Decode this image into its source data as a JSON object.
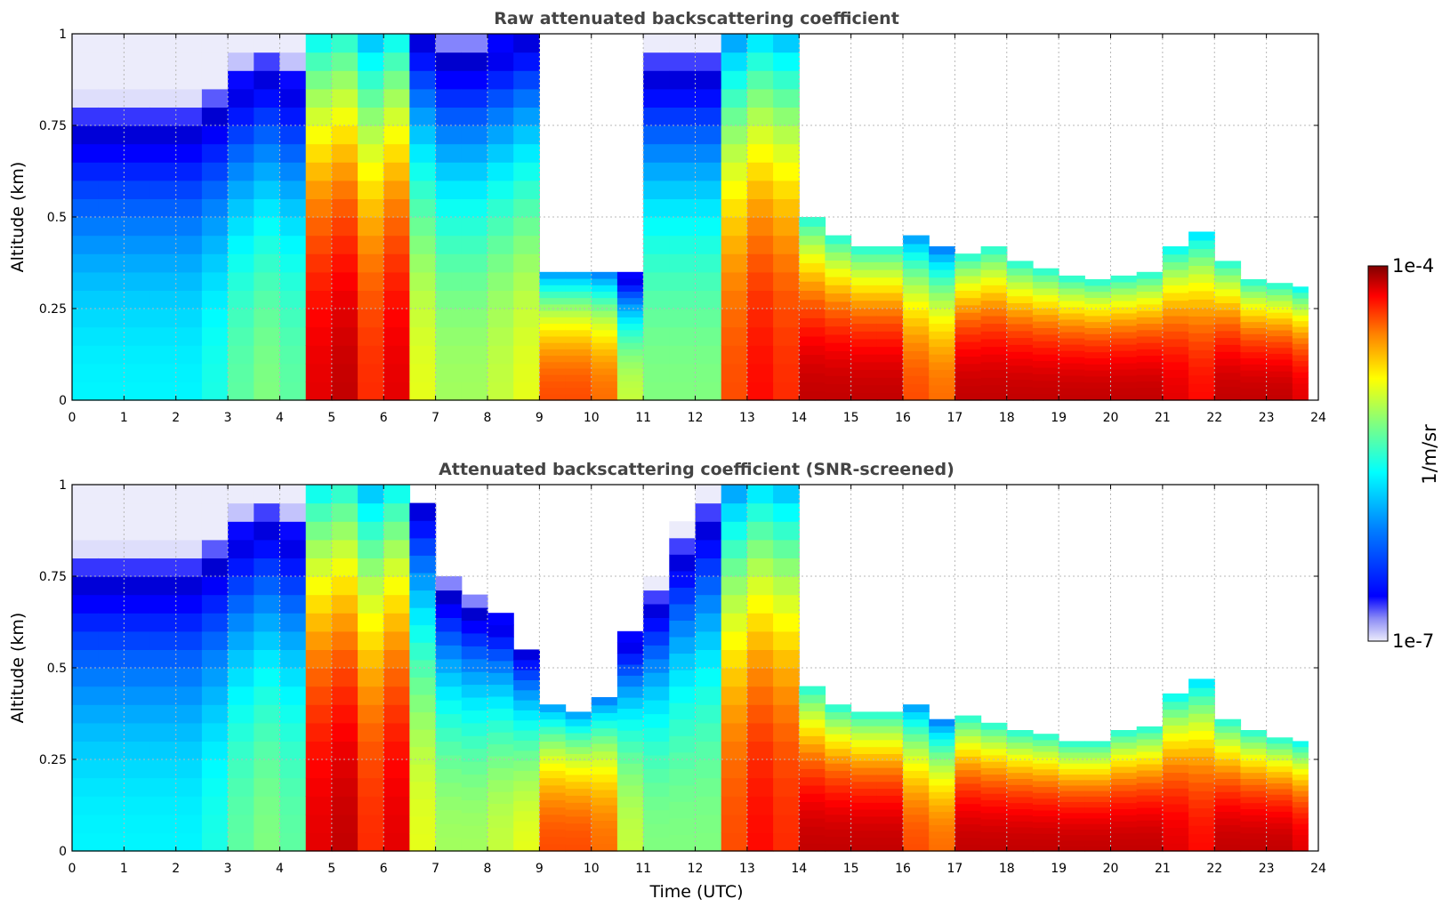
{
  "chart_data": [
    {
      "type": "heatmap",
      "title": "Raw attenuated backscattering coefficient",
      "xlabel": "",
      "ylabel": "Altitude (km)",
      "xlim": [
        0,
        24
      ],
      "ylim": [
        0,
        1
      ],
      "x_ticks": [
        "0",
        "1",
        "2",
        "3",
        "4",
        "5",
        "6",
        "7",
        "8",
        "9",
        "10",
        "11",
        "12",
        "13",
        "14",
        "15",
        "16",
        "17",
        "18",
        "19",
        "20",
        "21",
        "22",
        "23",
        "24"
      ],
      "y_ticks": [
        "0",
        "0.25",
        "0.5",
        "0.75",
        "1"
      ],
      "grid": true,
      "layer": {
        "time_utc": [
          0,
          0.5,
          1,
          1.5,
          2,
          2.5,
          3,
          3.5,
          4,
          4.5,
          5,
          5.5,
          6,
          6.5,
          7,
          7.5,
          8,
          8.5,
          9,
          9.5,
          10,
          10.5,
          11,
          11.5,
          12,
          12.5,
          13,
          13.5,
          14,
          14.5,
          15,
          15.5,
          16,
          16.5,
          17,
          17.5,
          18,
          18.5,
          19,
          19.5,
          20,
          20.5,
          21,
          21.5,
          22,
          22.5,
          23,
          23.5
        ],
        "top_km": [
          1,
          1,
          1,
          1,
          1,
          1,
          1,
          1,
          1,
          1,
          1,
          1,
          1,
          1,
          1,
          1,
          1,
          1,
          0.35,
          0.35,
          0.35,
          0.35,
          1,
          1,
          1,
          1,
          1,
          1,
          0.5,
          0.45,
          0.42,
          0.42,
          0.45,
          0.42,
          0.4,
          0.42,
          0.38,
          0.36,
          0.34,
          0.33,
          0.34,
          0.35,
          0.42,
          0.46,
          0.38,
          0.33,
          0.32,
          0.31
        ],
        "log_intensity_at_base": [
          -5.9,
          -5.9,
          -5.9,
          -5.9,
          -5.9,
          -5.8,
          -5.6,
          -5.5,
          -5.6,
          -4.3,
          -4.2,
          -4.5,
          -4.3,
          -5.2,
          -5.4,
          -5.4,
          -5.3,
          -5.2,
          -4.6,
          -4.6,
          -4.7,
          -5.3,
          -5.5,
          -5.5,
          -5.5,
          -4.6,
          -4.4,
          -4.5,
          -4.2,
          -4.2,
          -4.2,
          -4.2,
          -4.6,
          -4.7,
          -4.2,
          -4.2,
          -4.2,
          -4.2,
          -4.2,
          -4.2,
          -4.2,
          -4.2,
          -4.3,
          -4.4,
          -4.2,
          -4.2,
          -4.2,
          -4.3
        ]
      }
    },
    {
      "type": "heatmap",
      "title": "Attenuated backscattering coefficient (SNR-screened)",
      "xlabel": "Time (UTC)",
      "ylabel": "Altitude (km)",
      "xlim": [
        0,
        24
      ],
      "ylim": [
        0,
        1
      ],
      "x_ticks": [
        "0",
        "1",
        "2",
        "3",
        "4",
        "5",
        "6",
        "7",
        "8",
        "9",
        "10",
        "11",
        "12",
        "13",
        "14",
        "15",
        "16",
        "17",
        "18",
        "19",
        "20",
        "21",
        "22",
        "23",
        "24"
      ],
      "y_ticks": [
        "0",
        "0.25",
        "0.5",
        "0.75",
        "1"
      ],
      "grid": true,
      "layer": {
        "time_utc": [
          0,
          0.5,
          1,
          1.5,
          2,
          2.5,
          3,
          3.5,
          4,
          4.5,
          5,
          5.5,
          6,
          6.5,
          7,
          7.5,
          8,
          8.5,
          9,
          9.5,
          10,
          10.5,
          11,
          11.5,
          12,
          12.5,
          13,
          13.5,
          14,
          14.5,
          15,
          15.5,
          16,
          16.5,
          17,
          17.5,
          18,
          18.5,
          19,
          19.5,
          20,
          20.5,
          21,
          21.5,
          22,
          22.5,
          23,
          23.5
        ],
        "top_km": [
          1,
          1,
          1,
          1,
          1,
          1,
          1,
          1,
          1,
          1,
          1,
          1,
          1,
          0.95,
          0.75,
          0.7,
          0.65,
          0.55,
          0.4,
          0.38,
          0.42,
          0.6,
          0.75,
          0.9,
          1,
          1,
          1,
          1,
          0.45,
          0.4,
          0.38,
          0.38,
          0.4,
          0.36,
          0.37,
          0.35,
          0.33,
          0.32,
          0.3,
          0.3,
          0.33,
          0.34,
          0.43,
          0.47,
          0.36,
          0.33,
          0.31,
          0.3
        ],
        "log_intensity_at_base": [
          -5.9,
          -5.9,
          -5.9,
          -5.9,
          -5.9,
          -5.8,
          -5.6,
          -5.5,
          -5.6,
          -4.3,
          -4.2,
          -4.5,
          -4.3,
          -5.2,
          -5.4,
          -5.4,
          -5.3,
          -5.2,
          -4.6,
          -4.6,
          -4.7,
          -5.3,
          -5.5,
          -5.5,
          -5.5,
          -4.6,
          -4.4,
          -4.5,
          -4.2,
          -4.2,
          -4.2,
          -4.2,
          -4.6,
          -4.7,
          -4.2,
          -4.2,
          -4.2,
          -4.2,
          -4.2,
          -4.2,
          -4.2,
          -4.2,
          -4.3,
          -4.4,
          -4.2,
          -4.2,
          -4.2,
          -4.3
        ]
      }
    }
  ],
  "colorbar": {
    "label": "1/m/sr",
    "min_label": "1e-7",
    "max_label": "1e-4",
    "colormap": "jet",
    "colors": [
      "#e8e8fa",
      "#0000ff",
      "#0080ff",
      "#00ffff",
      "#80ff80",
      "#ffff00",
      "#ff8000",
      "#ff0000",
      "#800000"
    ]
  }
}
